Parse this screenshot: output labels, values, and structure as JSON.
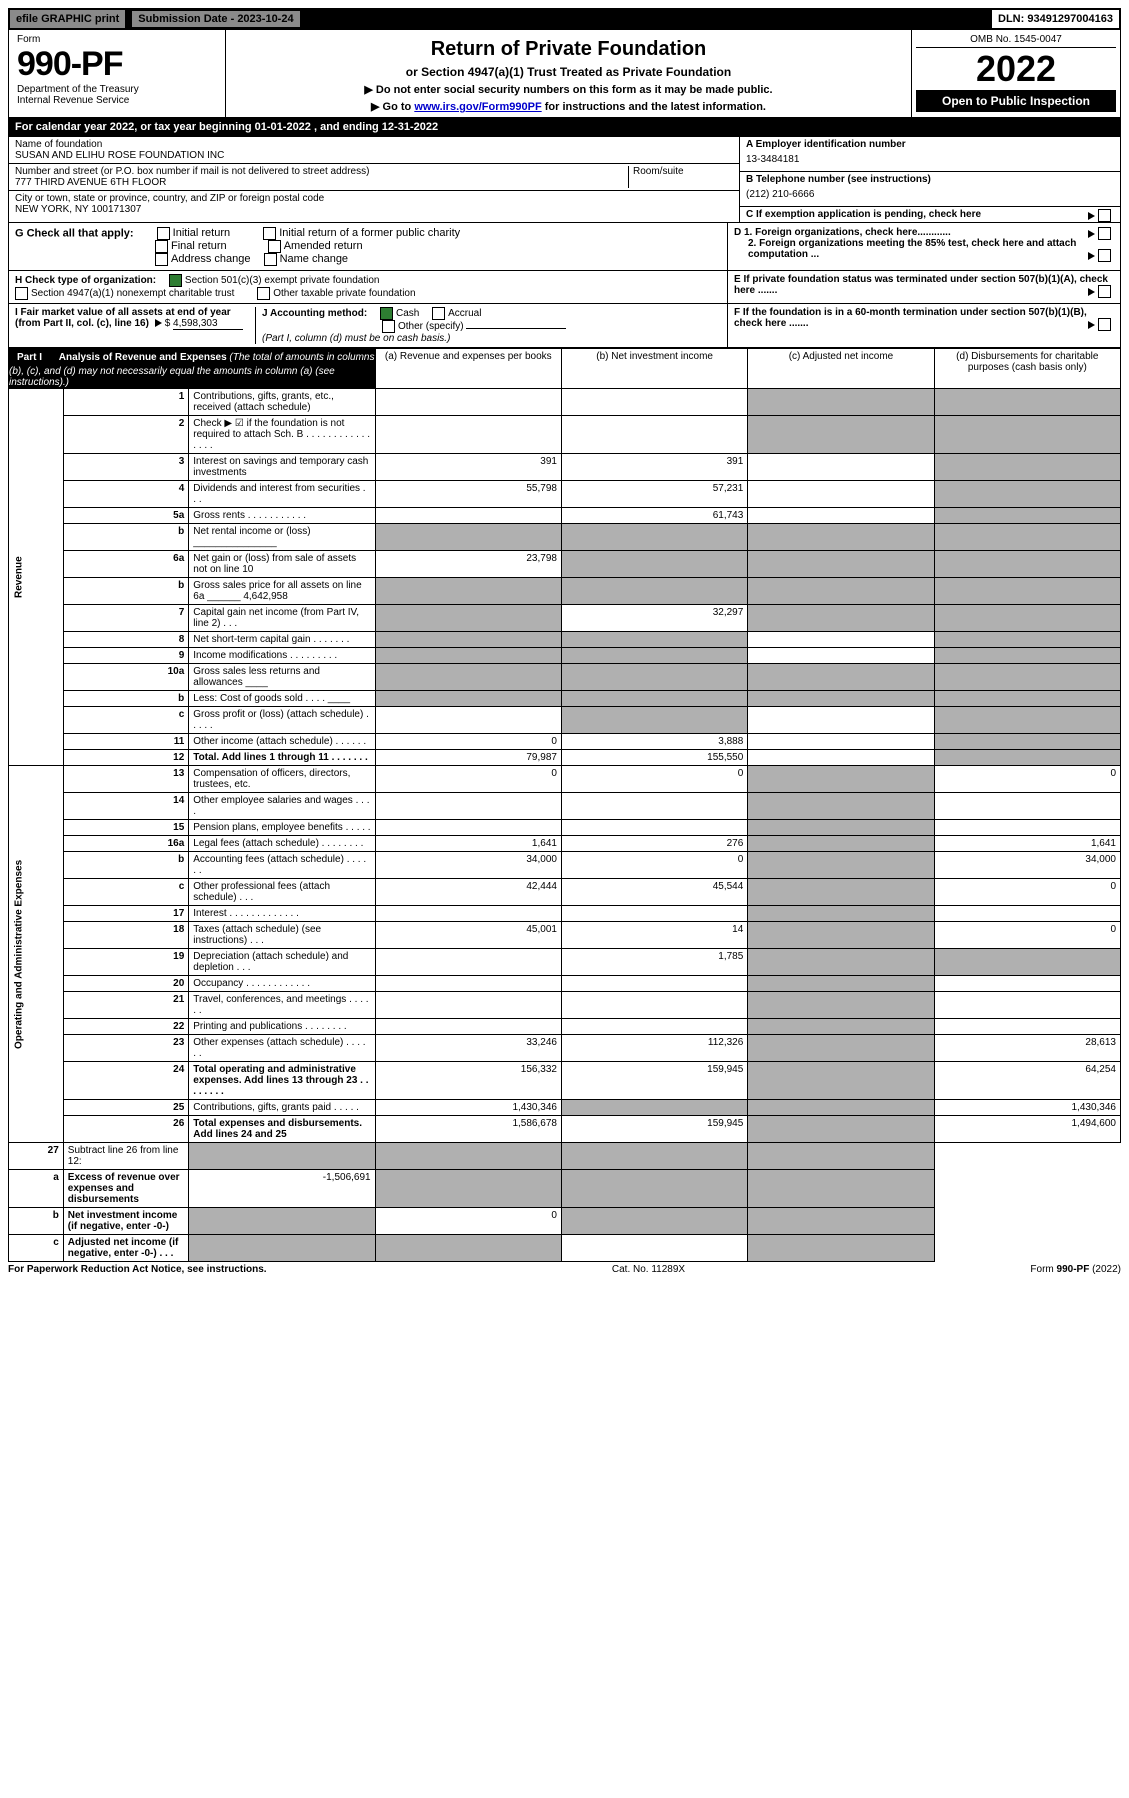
{
  "top_bar": {
    "efile": "efile GRAPHIC print",
    "sub_label": "Submission Date - 2023-10-24",
    "dln": "DLN: 93491297004163"
  },
  "header": {
    "form_label": "Form",
    "form_no": "990-PF",
    "dept": "Department of the Treasury",
    "irs": "Internal Revenue Service",
    "title": "Return of Private Foundation",
    "subtitle": "or Section 4947(a)(1) Trust Treated as Private Foundation",
    "note1": "▶ Do not enter social security numbers on this form as it may be made public.",
    "note2_pre": "▶ Go to ",
    "note2_link": "www.irs.gov/Form990PF",
    "note2_post": " for instructions and the latest information.",
    "omb": "OMB No. 1545-0047",
    "year": "2022",
    "open": "Open to Public Inspection"
  },
  "cal_year": "For calendar year 2022, or tax year beginning 01-01-2022                              , and ending 12-31-2022",
  "ident": {
    "name_label": "Name of foundation",
    "name": "SUSAN AND ELIHU ROSE FOUNDATION INC",
    "addr_label": "Number and street (or P.O. box number if mail is not delivered to street address)",
    "addr": "777 THIRD AVENUE 6TH FLOOR",
    "room_label": "Room/suite",
    "city_label": "City or town, state or province, country, and ZIP or foreign postal code",
    "city": "NEW YORK, NY  100171307",
    "a_label": "A Employer identification number",
    "a_val": "13-3484181",
    "b_label": "B Telephone number (see instructions)",
    "b_val": "(212) 210-6666",
    "c_label": "C If exemption application is pending, check here"
  },
  "g": {
    "label": "G Check all that apply:",
    "opts": [
      "Initial return",
      "Final return",
      "Address change",
      "Initial return of a former public charity",
      "Amended return",
      "Name change"
    ],
    "d1": "D 1. Foreign organizations, check here............",
    "d2": "2. Foreign organizations meeting the 85% test, check here and attach computation ...",
    "e": "E  If private foundation status was terminated under section 507(b)(1)(A), check here .......",
    "f": "F  If the foundation is in a 60-month termination under section 507(b)(1)(B), check here ......."
  },
  "h": {
    "label": "H Check type of organization:",
    "opt1": "Section 501(c)(3) exempt private foundation",
    "opt2": "Section 4947(a)(1) nonexempt charitable trust",
    "opt3": "Other taxable private foundation"
  },
  "i": {
    "label": "I Fair market value of all assets at end of year (from Part II, col. (c), line 16)",
    "val": "4,598,303"
  },
  "j": {
    "label": "J Accounting method:",
    "cash": "Cash",
    "accrual": "Accrual",
    "other": "Other (specify)",
    "note": "(Part I, column (d) must be on cash basis.)"
  },
  "part1": {
    "label": "Part I",
    "title": "Analysis of Revenue and Expenses",
    "desc": "(The total of amounts in columns (b), (c), and (d) may not necessarily equal the amounts in column (a) (see instructions).)",
    "col_a": "(a)   Revenue and expenses per books",
    "col_b": "(b)   Net investment income",
    "col_c": "(c)   Adjusted net income",
    "col_d": "(d)   Disbursements for charitable purposes (cash basis only)"
  },
  "labels": {
    "revenue": "Revenue",
    "expenses": "Operating and Administrative Expenses"
  },
  "rows": [
    {
      "n": "1",
      "d": "Contributions, gifts, grants, etc., received (attach schedule)",
      "a": "",
      "b": "",
      "c": "shaded",
      "dcol": "shaded"
    },
    {
      "n": "2",
      "d": "Check ▶ ☑ if the foundation is not required to attach Sch. B     .  .  .  .  .  .  .  .  .  .  .  .  .  .  .  .",
      "a": "",
      "b": "",
      "c": "shaded",
      "dcol": "shaded",
      "bold_check": true
    },
    {
      "n": "3",
      "d": "Interest on savings and temporary cash investments",
      "a": "391",
      "b": "391",
      "c": "",
      "dcol": "shaded"
    },
    {
      "n": "4",
      "d": "Dividends and interest from securities    .   .   .",
      "a": "55,798",
      "b": "57,231",
      "c": "",
      "dcol": "shaded"
    },
    {
      "n": "5a",
      "d": "Gross rents     .   .   .   .   .   .   .   .   .   .   .",
      "a": "",
      "b": "61,743",
      "c": "",
      "dcol": "shaded"
    },
    {
      "n": "b",
      "d": "Net rental income or (loss)  _______________",
      "a": "shaded",
      "b": "shaded",
      "c": "shaded",
      "dcol": "shaded"
    },
    {
      "n": "6a",
      "d": "Net gain or (loss) from sale of assets not on line 10",
      "a": "23,798",
      "b": "shaded",
      "c": "shaded",
      "dcol": "shaded"
    },
    {
      "n": "b",
      "d": "Gross sales price for all assets on line 6a ______ 4,642,958",
      "a": "shaded",
      "b": "shaded",
      "c": "shaded",
      "dcol": "shaded"
    },
    {
      "n": "7",
      "d": "Capital gain net income (from Part IV, line 2)    .   .   .",
      "a": "shaded",
      "b": "32,297",
      "c": "shaded",
      "dcol": "shaded"
    },
    {
      "n": "8",
      "d": "Net short-term capital gain  .   .   .   .   .   .   .",
      "a": "shaded",
      "b": "shaded",
      "c": "",
      "dcol": "shaded"
    },
    {
      "n": "9",
      "d": "Income modifications  .   .   .   .   .   .   .   .   .",
      "a": "shaded",
      "b": "shaded",
      "c": "",
      "dcol": "shaded"
    },
    {
      "n": "10a",
      "d": "Gross sales less returns and allowances  ____",
      "a": "shaded",
      "b": "shaded",
      "c": "shaded",
      "dcol": "shaded"
    },
    {
      "n": "b",
      "d": "Less: Cost of goods sold     .   .   .   .   ____",
      "a": "shaded",
      "b": "shaded",
      "c": "shaded",
      "dcol": "shaded"
    },
    {
      "n": "c",
      "d": "Gross profit or (loss) (attach schedule)     .   .   .   .   .",
      "a": "",
      "b": "shaded",
      "c": "",
      "dcol": "shaded"
    },
    {
      "n": "11",
      "d": "Other income (attach schedule)    .   .   .   .   .   .",
      "a": "0",
      "b": "3,888",
      "c": "",
      "dcol": "shaded"
    },
    {
      "n": "12",
      "d": "Total. Add lines 1 through 11   .   .   .   .   .   .   .",
      "a": "79,987",
      "b": "155,550",
      "c": "",
      "dcol": "shaded",
      "bold": true
    }
  ],
  "exp_rows": [
    {
      "n": "13",
      "d": "Compensation of officers, directors, trustees, etc.",
      "a": "0",
      "b": "0",
      "c": "shaded",
      "dcol": "0"
    },
    {
      "n": "14",
      "d": "Other employee salaries and wages   .   .   .   .",
      "a": "",
      "b": "",
      "c": "shaded",
      "dcol": ""
    },
    {
      "n": "15",
      "d": "Pension plans, employee benefits  .   .   .   .   .",
      "a": "",
      "b": "",
      "c": "shaded",
      "dcol": ""
    },
    {
      "n": "16a",
      "d": "Legal fees (attach schedule) .   .   .   .   .   .   .   .",
      "a": "1,641",
      "b": "276",
      "c": "shaded",
      "dcol": "1,641"
    },
    {
      "n": "b",
      "d": "Accounting fees (attach schedule) .   .   .   .   .   .",
      "a": "34,000",
      "b": "0",
      "c": "shaded",
      "dcol": "34,000"
    },
    {
      "n": "c",
      "d": "Other professional fees (attach schedule)    .   .   .",
      "a": "42,444",
      "b": "45,544",
      "c": "shaded",
      "dcol": "0"
    },
    {
      "n": "17",
      "d": "Interest .   .   .   .   .   .   .   .   .   .   .   .   .",
      "a": "",
      "b": "",
      "c": "shaded",
      "dcol": ""
    },
    {
      "n": "18",
      "d": "Taxes (attach schedule) (see instructions)    .   .   .",
      "a": "45,001",
      "b": "14",
      "c": "shaded",
      "dcol": "0"
    },
    {
      "n": "19",
      "d": "Depreciation (attach schedule) and depletion    .   .   .",
      "a": "",
      "b": "1,785",
      "c": "shaded",
      "dcol": "shaded"
    },
    {
      "n": "20",
      "d": "Occupancy .   .   .   .   .   .   .   .   .   .   .   .",
      "a": "",
      "b": "",
      "c": "shaded",
      "dcol": ""
    },
    {
      "n": "21",
      "d": "Travel, conferences, and meetings .   .   .   .   .   .",
      "a": "",
      "b": "",
      "c": "shaded",
      "dcol": ""
    },
    {
      "n": "22",
      "d": "Printing and publications .   .   .   .   .   .   .   .",
      "a": "",
      "b": "",
      "c": "shaded",
      "dcol": ""
    },
    {
      "n": "23",
      "d": "Other expenses (attach schedule) .   .   .   .   .   .",
      "a": "33,246",
      "b": "112,326",
      "c": "shaded",
      "dcol": "28,613"
    },
    {
      "n": "24",
      "d": "Total operating and administrative expenses. Add lines 13 through 23   .   .   .   .   .   .   .   .",
      "a": "156,332",
      "b": "159,945",
      "c": "shaded",
      "dcol": "64,254",
      "bold": true
    },
    {
      "n": "25",
      "d": "Contributions, gifts, grants paid     .   .   .   .   .",
      "a": "1,430,346",
      "b": "shaded",
      "c": "shaded",
      "dcol": "1,430,346"
    },
    {
      "n": "26",
      "d": "Total expenses and disbursements. Add lines 24 and 25",
      "a": "1,586,678",
      "b": "159,945",
      "c": "shaded",
      "dcol": "1,494,600",
      "bold": true
    }
  ],
  "bottom_rows": [
    {
      "n": "27",
      "d": "Subtract line 26 from line 12:",
      "a": "shaded",
      "b": "shaded",
      "c": "shaded",
      "dcol": "shaded"
    },
    {
      "n": "a",
      "d": "Excess of revenue over expenses and disbursements",
      "a": "-1,506,691",
      "b": "shaded",
      "c": "shaded",
      "dcol": "shaded",
      "bold": true
    },
    {
      "n": "b",
      "d": "Net investment income (if negative, enter -0-)",
      "a": "shaded",
      "b": "0",
      "c": "shaded",
      "dcol": "shaded",
      "bold": true
    },
    {
      "n": "c",
      "d": "Adjusted net income (if negative, enter -0-)   .   .   .",
      "a": "shaded",
      "b": "shaded",
      "c": "",
      "dcol": "shaded",
      "bold": true
    }
  ],
  "footer": {
    "left": "For Paperwork Reduction Act Notice, see instructions.",
    "center": "Cat. No. 11289X",
    "right": "Form 990-PF (2022)"
  }
}
